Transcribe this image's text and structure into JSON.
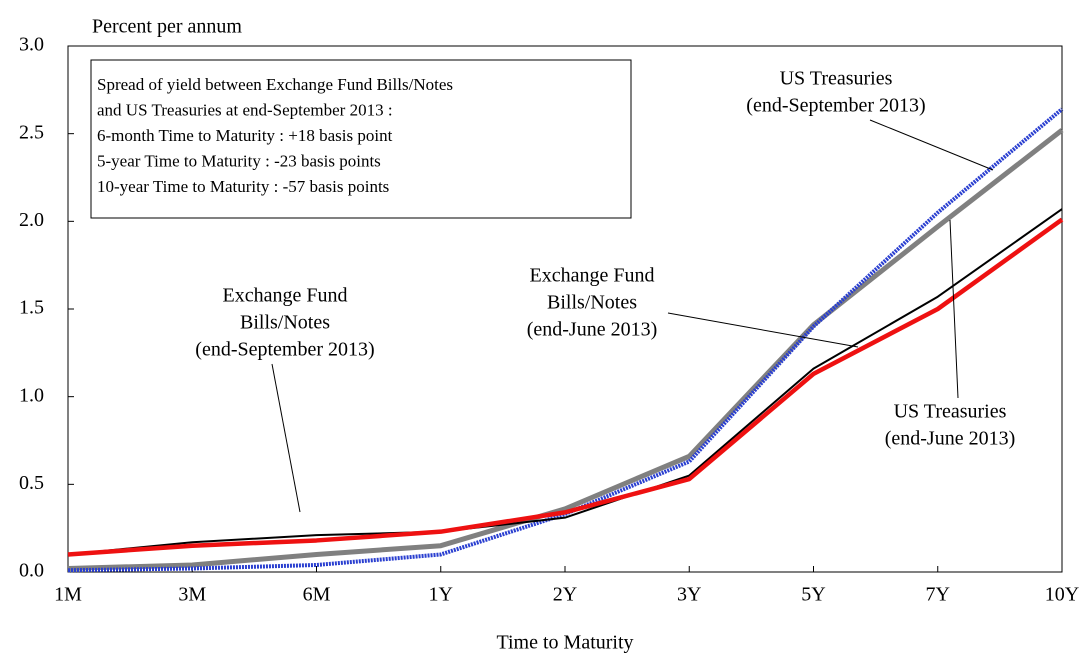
{
  "chart_data": {
    "type": "line",
    "y_label": "Percent per annum",
    "x_label": "Time to Maturity",
    "categories": [
      "1M",
      "3M",
      "6M",
      "1Y",
      "2Y",
      "3Y",
      "5Y",
      "7Y",
      "10Y"
    ],
    "ylim": [
      0,
      3
    ],
    "yticks": [
      {
        "value": 0,
        "label": "0.0"
      },
      0.5,
      {
        "value": 1,
        "label": "1.0"
      },
      1.5,
      {
        "value": 2,
        "label": "2.0"
      },
      2.5,
      {
        "value": 3,
        "label": "3.0"
      }
    ],
    "note_lines": [
      "Spread of yield between Exchange Fund Bills/Notes",
      "and US Treasuries at end-September 2013 :",
      "6-month Time to Maturity : +18 basis point",
      "5-year Time to Maturity : -23 basis points",
      "10-year Time to Maturity : -57 basis points"
    ],
    "series": [
      {
        "name": [
          "US Treasuries",
          "(end-June 2013)"
        ],
        "color": "#808080",
        "values": [
          0.02,
          0.04,
          0.1,
          0.15,
          0.36,
          0.66,
          1.41,
          1.97,
          2.52
        ]
      },
      {
        "name": [
          "US Treasuries",
          "(end-September 2013)"
        ],
        "color": "#2a3fd0",
        "values": [
          0.01,
          0.02,
          0.04,
          0.1,
          0.33,
          0.63,
          1.4,
          2.05,
          2.64
        ]
      },
      {
        "name": [
          "Exchange Fund",
          "Bills/Notes",
          "(end-September 2013)"
        ],
        "color": "#000000",
        "values": [
          0.1,
          0.17,
          0.21,
          0.23,
          0.31,
          0.55,
          1.16,
          1.57,
          2.07
        ]
      },
      {
        "name": [
          "Exchange Fund",
          "Bills/Notes",
          "(end-June 2013)"
        ],
        "color": "#ee1111",
        "values": [
          0.1,
          0.15,
          0.18,
          0.23,
          0.34,
          0.53,
          1.13,
          1.5,
          2.01
        ]
      }
    ]
  }
}
